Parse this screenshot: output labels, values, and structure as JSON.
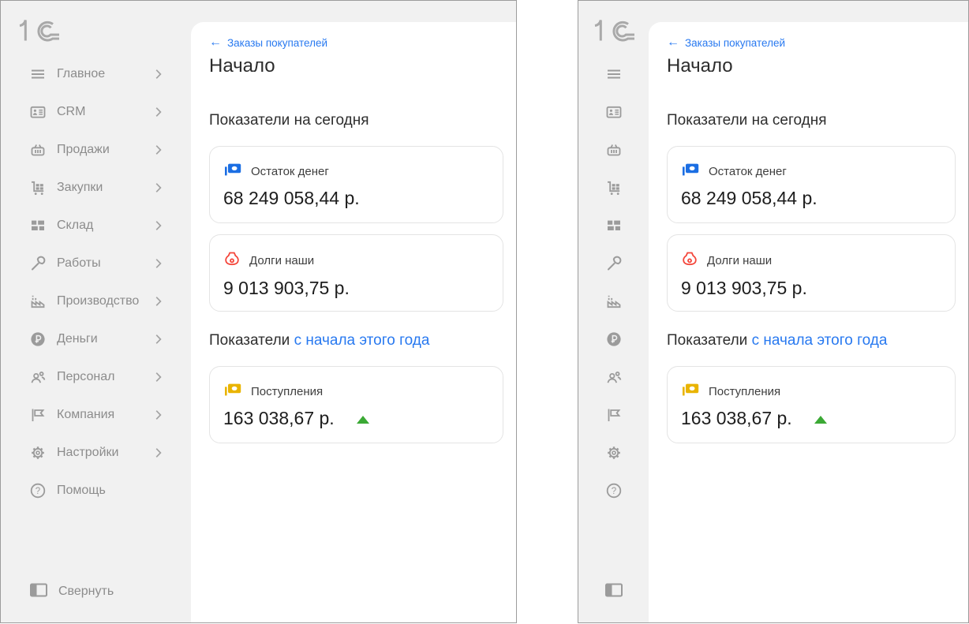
{
  "colors": {
    "link_blue": "#2879f0",
    "icon_gray": "#9b9b9b",
    "card_icon_blue": "#1b6ee3",
    "card_icon_red": "#f4453a",
    "card_icon_yellow": "#e9b400",
    "trend_green": "#3ba935",
    "sidebar_bg": "#f1f1f1"
  },
  "content": {
    "back_link": "Заказы покупателей",
    "title": "Начало",
    "sections": [
      {
        "heading": "Показатели на сегодня",
        "heading_link": "",
        "cards": [
          {
            "icon": "banknote-icon",
            "icon_color": "#1b6ee3",
            "label": "Остаток денег",
            "value": "68 249 058,44 р.",
            "trend": ""
          },
          {
            "icon": "moneybag-icon",
            "icon_color": "#f4453a",
            "label": "Долги наши",
            "value": "9 013 903,75 р.",
            "trend": ""
          }
        ]
      },
      {
        "heading": "Показатели",
        "heading_link": "с начала этого года",
        "cards": [
          {
            "icon": "banknote-icon",
            "icon_color": "#e9b400",
            "label": "Поступления",
            "value": "163 038,67 р.",
            "trend": "up"
          }
        ]
      }
    ]
  },
  "sidebar": {
    "logo": "1С",
    "items": [
      {
        "label": "Главное",
        "icon": "menu-icon",
        "chevron": true
      },
      {
        "label": "CRM",
        "icon": "crm-card-icon",
        "chevron": true
      },
      {
        "label": "Продажи",
        "icon": "basket-icon",
        "chevron": true
      },
      {
        "label": "Закупки",
        "icon": "cart-icon",
        "chevron": true
      },
      {
        "label": "Склад",
        "icon": "warehouse-icon",
        "chevron": true
      },
      {
        "label": "Работы",
        "icon": "wrench-icon",
        "chevron": true
      },
      {
        "label": "Производство",
        "icon": "factory-icon",
        "chevron": true
      },
      {
        "label": "Деньги",
        "icon": "ruble-icon",
        "chevron": true
      },
      {
        "label": "Персонал",
        "icon": "people-icon",
        "chevron": true
      },
      {
        "label": "Компания",
        "icon": "flag-icon",
        "chevron": true
      },
      {
        "label": "Настройки",
        "icon": "gear-icon",
        "chevron": true
      },
      {
        "label": "Помощь",
        "icon": "help-icon",
        "chevron": false
      }
    ],
    "collapse_label": "Свернуть"
  }
}
